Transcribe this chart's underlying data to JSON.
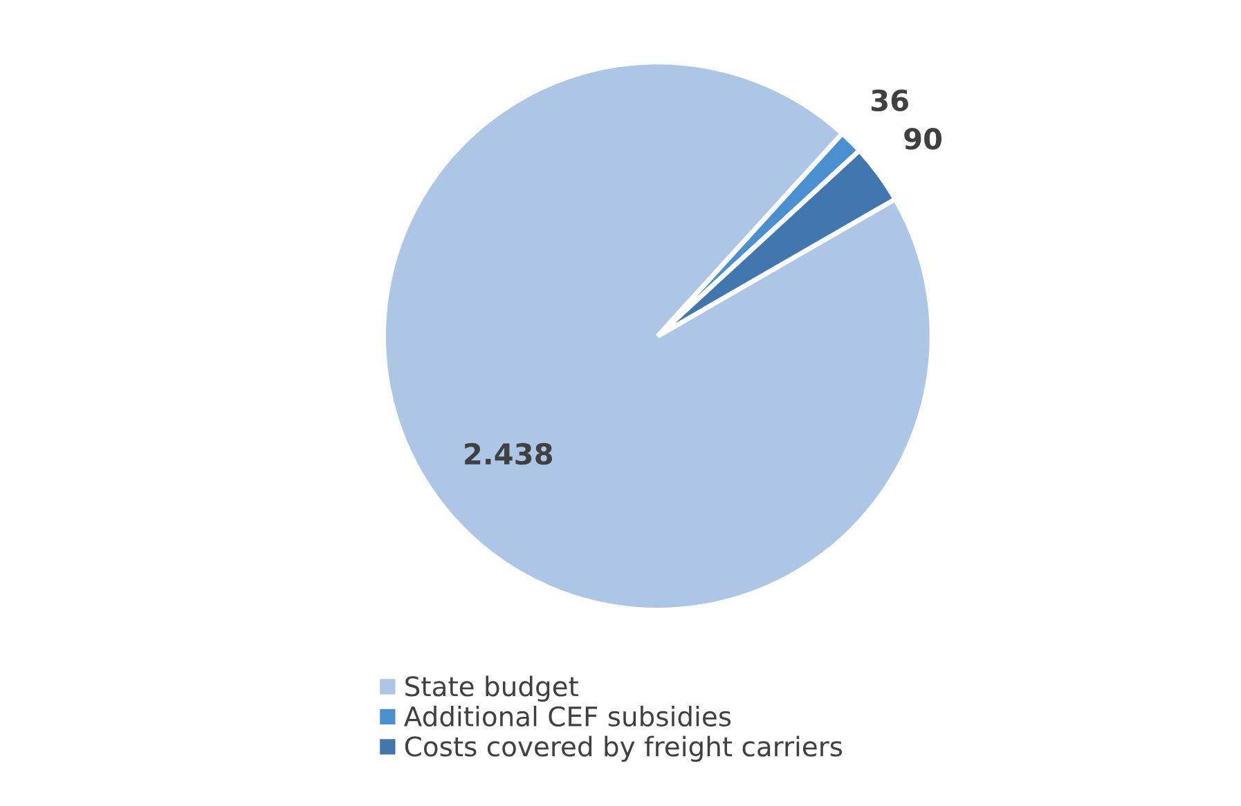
{
  "chart_data": {
    "type": "pie",
    "categories": [
      "State budget",
      "Additional CEF subsidies",
      "Costs covered by freight carriers"
    ],
    "values": [
      2438,
      36,
      90
    ],
    "value_labels": [
      "2.438",
      "36",
      "90"
    ],
    "colors": [
      "#adc6e5",
      "#4a90d0",
      "#4177ae"
    ],
    "legend": "bottom"
  }
}
